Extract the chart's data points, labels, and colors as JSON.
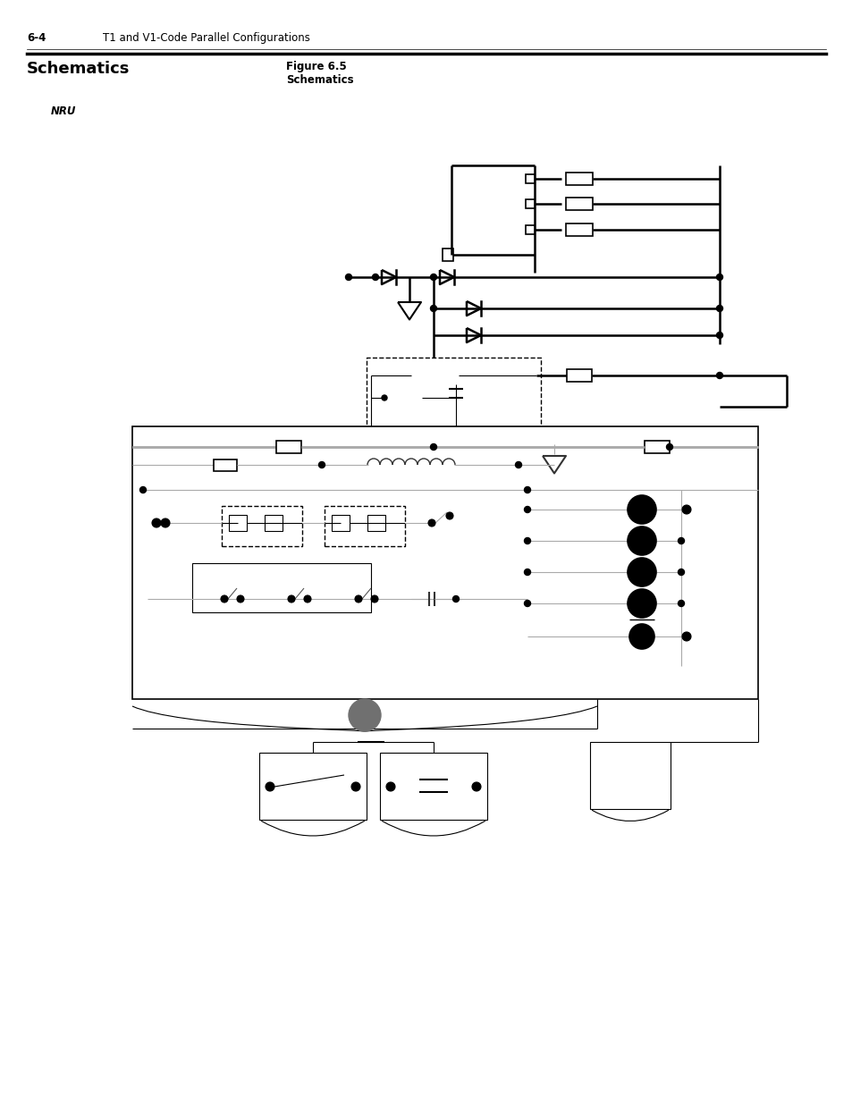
{
  "page_num": "6-4",
  "page_header": "T1 and V1-Code Parallel Configurations",
  "title": "Schematics",
  "figure_label": "Figure 6.5",
  "figure_title": "Schematics",
  "nru_label": "NRU",
  "bg_color": "#ffffff",
  "line_color": "#000000",
  "thick_lw": 1.8,
  "thin_lw": 0.8,
  "gray_lw": 0.8
}
